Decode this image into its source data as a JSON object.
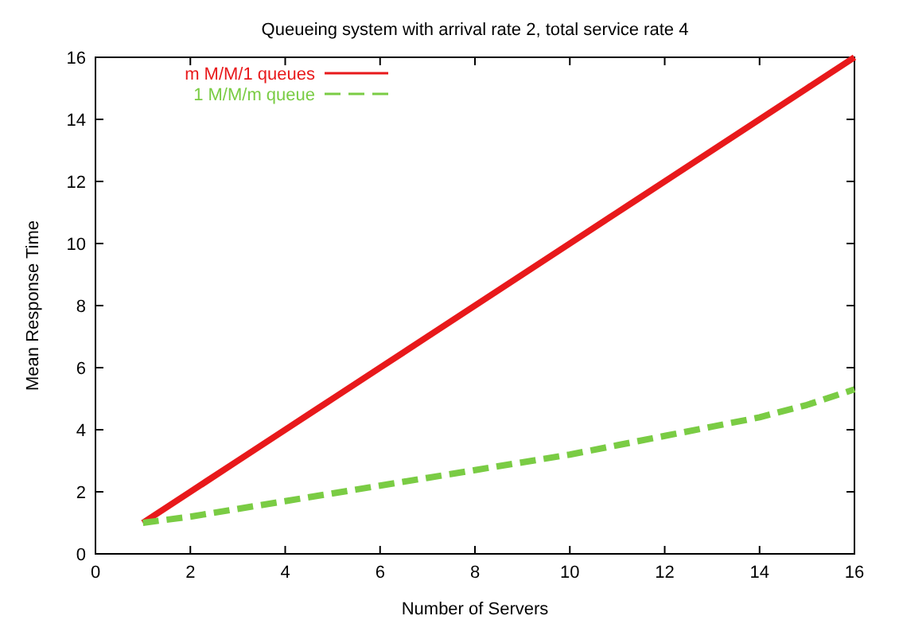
{
  "chart_data": {
    "type": "line",
    "title": "Queueing system with arrival rate 2, total service rate 4",
    "xlabel": "Number of Servers",
    "ylabel": "Mean Response Time",
    "x": [
      1,
      2,
      3,
      4,
      5,
      6,
      7,
      8,
      9,
      10,
      11,
      12,
      13,
      14,
      15,
      16
    ],
    "xlim": [
      0,
      16
    ],
    "xticks": [
      0,
      2,
      4,
      6,
      8,
      10,
      12,
      14,
      16
    ],
    "ylim": [
      0,
      16
    ],
    "yticks": [
      0,
      2,
      4,
      6,
      8,
      10,
      12,
      14,
      16
    ],
    "legend": "top left",
    "grid": false,
    "marker": "none",
    "series": [
      {
        "name": "m M/M/1 queues",
        "color": "#e8191b",
        "line_style": "solid",
        "values": [
          1,
          2,
          3,
          4,
          5,
          6,
          7,
          8,
          9,
          10,
          11,
          12,
          13,
          14,
          15,
          16
        ]
      },
      {
        "name": "1 M/M/m queue",
        "color": "#7acc44",
        "line_style": "dashed",
        "values": [
          1,
          1.2,
          1.45,
          1.7,
          1.95,
          2.2,
          2.45,
          2.7,
          2.95,
          3.2,
          3.5,
          3.8,
          4.1,
          4.4,
          4.8,
          5.3
        ]
      }
    ]
  }
}
